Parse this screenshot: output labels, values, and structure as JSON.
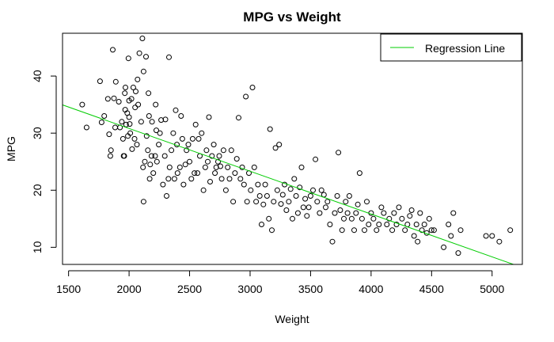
{
  "chart_data": {
    "type": "scatter",
    "title": "MPG vs Weight",
    "xlabel": "Weight",
    "ylabel": "MPG",
    "xlim": [
      1450,
      5250
    ],
    "ylim": [
      7,
      47.5
    ],
    "xticks": [
      1500,
      2000,
      2500,
      3000,
      3500,
      4000,
      4500,
      5000
    ],
    "yticks": [
      10,
      20,
      30,
      40
    ],
    "grid": false,
    "legend": {
      "position": "top-right",
      "entries": [
        {
          "label": "Regression Line",
          "color": "#00cc00"
        }
      ]
    },
    "series": [
      {
        "type": "scatter",
        "marker": "open-circle",
        "color": "#000000",
        "points": [
          [
            1613,
            35
          ],
          [
            1649,
            31
          ],
          [
            1760,
            39.1
          ],
          [
            1773,
            31.9
          ],
          [
            1795,
            33
          ],
          [
            1825,
            36
          ],
          [
            1835,
            29.8
          ],
          [
            1845,
            26
          ],
          [
            1850,
            27
          ],
          [
            1865,
            44.6
          ],
          [
            1875,
            36.1
          ],
          [
            1885,
            31
          ],
          [
            1890,
            39
          ],
          [
            1915,
            35.5
          ],
          [
            1925,
            31
          ],
          [
            1940,
            32
          ],
          [
            1950,
            29
          ],
          [
            1955,
            26
          ],
          [
            1960,
            26
          ],
          [
            1965,
            37
          ],
          [
            1968,
            34.1
          ],
          [
            1970,
            38
          ],
          [
            1975,
            31.5
          ],
          [
            1985,
            33.5
          ],
          [
            1990,
            29.5
          ],
          [
            1995,
            43.1
          ],
          [
            2000,
            35.7
          ],
          [
            2000,
            32.8
          ],
          [
            2005,
            31.6
          ],
          [
            2010,
            30
          ],
          [
            2020,
            36
          ],
          [
            2025,
            27.2
          ],
          [
            2035,
            38
          ],
          [
            2045,
            29
          ],
          [
            2050,
            34.5
          ],
          [
            2055,
            37.3
          ],
          [
            2065,
            28
          ],
          [
            2070,
            39.4
          ],
          [
            2075,
            35
          ],
          [
            2085,
            44
          ],
          [
            2100,
            32
          ],
          [
            2110,
            46.6
          ],
          [
            2115,
            24
          ],
          [
            2120,
            40.8
          ],
          [
            2120,
            18
          ],
          [
            2130,
            25
          ],
          [
            2140,
            43.4
          ],
          [
            2145,
            29.5
          ],
          [
            2155,
            27
          ],
          [
            2160,
            37
          ],
          [
            2165,
            33
          ],
          [
            2170,
            22
          ],
          [
            2175,
            24.5
          ],
          [
            2185,
            26
          ],
          [
            2190,
            32
          ],
          [
            2200,
            23
          ],
          [
            2215,
            26
          ],
          [
            2220,
            35
          ],
          [
            2225,
            30.5
          ],
          [
            2230,
            25
          ],
          [
            2245,
            28
          ],
          [
            2255,
            30
          ],
          [
            2265,
            32.3
          ],
          [
            2280,
            21
          ],
          [
            2295,
            26
          ],
          [
            2300,
            32.4
          ],
          [
            2310,
            19
          ],
          [
            2325,
            22
          ],
          [
            2330,
            43.3
          ],
          [
            2335,
            24
          ],
          [
            2350,
            27
          ],
          [
            2365,
            30
          ],
          [
            2375,
            22
          ],
          [
            2385,
            34
          ],
          [
            2395,
            28
          ],
          [
            2400,
            23
          ],
          [
            2420,
            24
          ],
          [
            2430,
            33
          ],
          [
            2440,
            29
          ],
          [
            2450,
            21
          ],
          [
            2465,
            24.5
          ],
          [
            2475,
            27
          ],
          [
            2490,
            28
          ],
          [
            2500,
            25
          ],
          [
            2515,
            22
          ],
          [
            2525,
            29
          ],
          [
            2540,
            23
          ],
          [
            2550,
            31.5
          ],
          [
            2565,
            23
          ],
          [
            2575,
            29
          ],
          [
            2585,
            26
          ],
          [
            2600,
            30
          ],
          [
            2615,
            20
          ],
          [
            2630,
            24
          ],
          [
            2640,
            27
          ],
          [
            2650,
            25
          ],
          [
            2660,
            32.8
          ],
          [
            2670,
            21.5
          ],
          [
            2685,
            26
          ],
          [
            2700,
            28
          ],
          [
            2710,
            23
          ],
          [
            2720,
            24
          ],
          [
            2735,
            25
          ],
          [
            2745,
            26
          ],
          [
            2755,
            24.2
          ],
          [
            2765,
            22
          ],
          [
            2780,
            27
          ],
          [
            2800,
            20
          ],
          [
            2815,
            24
          ],
          [
            2830,
            22
          ],
          [
            2845,
            27
          ],
          [
            2860,
            18
          ],
          [
            2875,
            23
          ],
          [
            2890,
            25.5
          ],
          [
            2905,
            32.7
          ],
          [
            2920,
            22
          ],
          [
            2935,
            24
          ],
          [
            2950,
            21
          ],
          [
            2965,
            36.4
          ],
          [
            2975,
            18
          ],
          [
            2990,
            23
          ],
          [
            3005,
            20
          ],
          [
            3020,
            38
          ],
          [
            3035,
            24
          ],
          [
            3050,
            18
          ],
          [
            3065,
            21
          ],
          [
            3080,
            19
          ],
          [
            3095,
            14
          ],
          [
            3110,
            17.5
          ],
          [
            3125,
            21
          ],
          [
            3140,
            19
          ],
          [
            3155,
            15
          ],
          [
            3165,
            30.7
          ],
          [
            3180,
            13
          ],
          [
            3195,
            18
          ],
          [
            3210,
            27.4
          ],
          [
            3225,
            20
          ],
          [
            3240,
            28
          ],
          [
            3255,
            17.6
          ],
          [
            3270,
            19.2
          ],
          [
            3285,
            21
          ],
          [
            3300,
            16.5
          ],
          [
            3320,
            18
          ],
          [
            3335,
            20.2
          ],
          [
            3350,
            15
          ],
          [
            3365,
            22
          ],
          [
            3380,
            19
          ],
          [
            3395,
            16
          ],
          [
            3410,
            20.5
          ],
          [
            3425,
            24
          ],
          [
            3440,
            17
          ],
          [
            3455,
            18.5
          ],
          [
            3470,
            15.5
          ],
          [
            3485,
            17
          ],
          [
            3500,
            19
          ],
          [
            3520,
            20
          ],
          [
            3540,
            25.4
          ],
          [
            3555,
            18
          ],
          [
            3575,
            16
          ],
          [
            3590,
            20
          ],
          [
            3610,
            19.2
          ],
          [
            3625,
            17
          ],
          [
            3640,
            18
          ],
          [
            3660,
            14
          ],
          [
            3680,
            11
          ],
          [
            3700,
            16
          ],
          [
            3720,
            19
          ],
          [
            3730,
            26.6
          ],
          [
            3745,
            16.5
          ],
          [
            3760,
            13
          ],
          [
            3775,
            15
          ],
          [
            3790,
            18
          ],
          [
            3805,
            16
          ],
          [
            3820,
            19
          ],
          [
            3840,
            15
          ],
          [
            3860,
            13
          ],
          [
            3875,
            16
          ],
          [
            3890,
            17.5
          ],
          [
            3905,
            23
          ],
          [
            3925,
            15
          ],
          [
            3945,
            13
          ],
          [
            3965,
            18
          ],
          [
            3980,
            14
          ],
          [
            4000,
            16
          ],
          [
            4020,
            15
          ],
          [
            4045,
            13
          ],
          [
            4065,
            14
          ],
          [
            4085,
            17
          ],
          [
            4105,
            16
          ],
          [
            4130,
            14
          ],
          [
            4150,
            15
          ],
          [
            4175,
            13
          ],
          [
            4190,
            16
          ],
          [
            4210,
            14
          ],
          [
            4230,
            17
          ],
          [
            4255,
            15
          ],
          [
            4280,
            13
          ],
          [
            4300,
            14
          ],
          [
            4320,
            15.5
          ],
          [
            4335,
            16.5
          ],
          [
            4355,
            12
          ],
          [
            4375,
            14
          ],
          [
            4385,
            11
          ],
          [
            4405,
            16
          ],
          [
            4420,
            13
          ],
          [
            4440,
            14
          ],
          [
            4460,
            12.5
          ],
          [
            4480,
            15
          ],
          [
            4499,
            13
          ],
          [
            4520,
            13
          ],
          [
            4600,
            10
          ],
          [
            4640,
            14
          ],
          [
            4660,
            12
          ],
          [
            4680,
            16
          ],
          [
            4720,
            9
          ],
          [
            4740,
            13
          ],
          [
            4950,
            12
          ],
          [
            5000,
            12
          ],
          [
            5060,
            11
          ],
          [
            5150,
            13
          ]
        ]
      },
      {
        "type": "line",
        "name": "Regression Line",
        "color": "#00cc00",
        "points": [
          [
            1450,
            34.95
          ],
          [
            5250,
            6.45
          ]
        ]
      }
    ]
  }
}
